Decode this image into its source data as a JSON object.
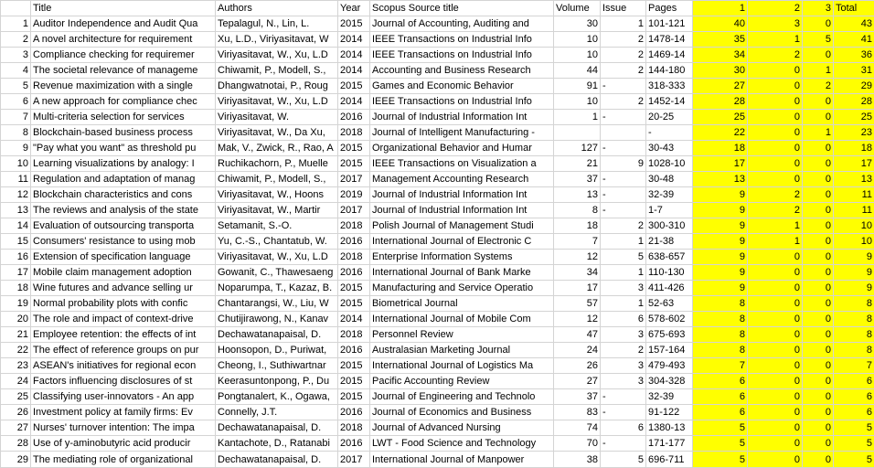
{
  "sheet": {
    "highlight_color": "#ffff00",
    "headers": [
      "",
      "Title",
      "Authors",
      "Year",
      "Scopus Source title",
      "Volume",
      "Issue",
      "Pages",
      "1",
      "2",
      "3",
      "Total"
    ],
    "rows": [
      [
        "1",
        "Auditor Independence and Audit Qua",
        "Tepalagul, N., Lin, L.",
        "2015",
        "Journal of Accounting, Auditing and",
        "30",
        "1",
        "101-121",
        "40",
        "3",
        "0",
        "43"
      ],
      [
        "2",
        "A novel architecture for requirement",
        "Xu, L.D., Viriyasitavat, W",
        "2014",
        "IEEE Transactions on Industrial Info",
        "10",
        "2",
        "1478-14",
        "35",
        "1",
        "5",
        "41"
      ],
      [
        "3",
        "Compliance checking for requiremer",
        "Viriyasitavat, W., Xu, L.D",
        "2014",
        "IEEE Transactions on Industrial Info",
        "10",
        "2",
        "1469-14",
        "34",
        "2",
        "0",
        "36"
      ],
      [
        "4",
        "The societal relevance of manageme",
        "Chiwamit, P., Modell, S.,",
        "2014",
        "Accounting and Business Research",
        "44",
        "2",
        "144-180",
        "30",
        "0",
        "1",
        "31"
      ],
      [
        "5",
        "Revenue maximization with a single",
        "Dhangwatnotai, P., Roug",
        "2015",
        "Games and Economic Behavior",
        "91",
        "-",
        "318-333",
        "27",
        "0",
        "2",
        "29"
      ],
      [
        "6",
        "A new approach for compliance chec",
        "Viriyasitavat, W., Xu, L.D",
        "2014",
        "IEEE Transactions on Industrial Info",
        "10",
        "2",
        "1452-14",
        "28",
        "0",
        "0",
        "28"
      ],
      [
        "7",
        "Multi-criteria selection for services",
        "Viriyasitavat, W.",
        "2016",
        "Journal of Industrial Information Int",
        "1",
        "-",
        "20-25",
        "25",
        "0",
        "0",
        "25"
      ],
      [
        "8",
        "Blockchain-based business process",
        "Viriyasitavat, W., Da Xu,",
        "2018",
        "Journal of Intelligent Manufacturing -",
        "",
        "",
        "-",
        "22",
        "0",
        "1",
        "23"
      ],
      [
        "9",
        "\"Pay what you want\" as threshold pu",
        "Mak, V., Zwick, R., Rao, A",
        "2015",
        "Organizational Behavior and Humar",
        "127",
        "-",
        "30-43",
        "18",
        "0",
        "0",
        "18"
      ],
      [
        "10",
        "Learning visualizations by analogy: I",
        "Ruchikachorn, P., Muelle",
        "2015",
        "IEEE Transactions on Visualization a",
        "21",
        "9",
        "1028-10",
        "17",
        "0",
        "0",
        "17"
      ],
      [
        "11",
        "Regulation and adaptation of manag",
        "Chiwamit, P., Modell, S.,",
        "2017",
        "Management Accounting Research",
        "37",
        "-",
        "30-48",
        "13",
        "0",
        "0",
        "13"
      ],
      [
        "12",
        "Blockchain characteristics and cons",
        "Viriyasitavat, W., Hoons",
        "2019",
        "Journal of Industrial Information Int",
        "13",
        "-",
        "32-39",
        "9",
        "2",
        "0",
        "11"
      ],
      [
        "13",
        "The reviews and analysis of the state",
        "Viriyasitavat, W., Martir",
        "2017",
        "Journal of Industrial Information Int",
        "8",
        "-",
        "1-7",
        "9",
        "2",
        "0",
        "11"
      ],
      [
        "14",
        "Evaluation of outsourcing transporta",
        "Setamanit, S.-O.",
        "2018",
        "Polish Journal of Management Studi",
        "18",
        "2",
        "300-310",
        "9",
        "1",
        "0",
        "10"
      ],
      [
        "15",
        "Consumers' resistance to using mob",
        "Yu, C.-S., Chantatub, W.",
        "2016",
        "International Journal of Electronic C",
        "7",
        "1",
        "21-38",
        "9",
        "1",
        "0",
        "10"
      ],
      [
        "16",
        "Extension of specification language",
        "Viriyasitavat, W., Xu, L.D",
        "2018",
        "Enterprise Information Systems",
        "12",
        "5",
        "638-657",
        "9",
        "0",
        "0",
        "9"
      ],
      [
        "17",
        "Mobile claim management adoption",
        "Gowanit, C., Thawesaeng",
        "2016",
        "International Journal of Bank Marke",
        "34",
        "1",
        "110-130",
        "9",
        "0",
        "0",
        "9"
      ],
      [
        "18",
        "Wine futures and advance selling ur",
        "Noparumpa, T., Kazaz, B.",
        "2015",
        "Manufacturing and Service Operatio",
        "17",
        "3",
        "411-426",
        "9",
        "0",
        "0",
        "9"
      ],
      [
        "19",
        "Normal probability plots with confic",
        "Chantarangsi, W., Liu, W",
        "2015",
        "Biometrical Journal",
        "57",
        "1",
        "52-63",
        "8",
        "0",
        "0",
        "8"
      ],
      [
        "20",
        "The role and impact of context-drive",
        "Chutijirawong, N., Kanav",
        "2014",
        "International Journal of Mobile Com",
        "12",
        "6",
        "578-602",
        "8",
        "0",
        "0",
        "8"
      ],
      [
        "21",
        "Employee retention: the effects of int",
        "Dechawatanapaisal, D.",
        "2018",
        "Personnel Review",
        "47",
        "3",
        "675-693",
        "8",
        "0",
        "0",
        "8"
      ],
      [
        "22",
        "The effect of reference groups on pur",
        "Hoonsopon, D., Puriwat,",
        "2016",
        "Australasian Marketing Journal",
        "24",
        "2",
        "157-164",
        "8",
        "0",
        "0",
        "8"
      ],
      [
        "23",
        "ASEAN's initiatives for regional econ",
        "Cheong, I., Suthiwartnar",
        "2015",
        "International Journal of Logistics Ma",
        "26",
        "3",
        "479-493",
        "7",
        "0",
        "0",
        "7"
      ],
      [
        "24",
        "Factors influencing disclosures of st",
        "Keerasuntonpong, P., Du",
        "2015",
        "Pacific Accounting Review",
        "27",
        "3",
        "304-328",
        "6",
        "0",
        "0",
        "6"
      ],
      [
        "25",
        "Classifying user-innovators - An app",
        "Pongtanalert, K., Ogawa,",
        "2015",
        "Journal of Engineering and Technolo",
        "37",
        "-",
        "32-39",
        "6",
        "0",
        "0",
        "6"
      ],
      [
        "26",
        "Investment policy at family firms: Ev",
        "Connelly, J.T.",
        "2016",
        "Journal of Economics and Business",
        "83",
        "-",
        "91-122",
        "6",
        "0",
        "0",
        "6"
      ],
      [
        "27",
        "Nurses' turnover intention: The impa",
        "Dechawatanapaisal, D.",
        "2018",
        "Journal of Advanced Nursing",
        "74",
        "6",
        "1380-13",
        "5",
        "0",
        "0",
        "5"
      ],
      [
        "28",
        "Use of y-aminobutyric acid producir",
        "Kantachote, D., Ratanabi",
        "2016",
        "LWT - Food Science and Technology",
        "70",
        "-",
        "171-177",
        "5",
        "0",
        "0",
        "5"
      ],
      [
        "29",
        "The mediating role of organizational",
        "Dechawatanapaisal, D.",
        "2017",
        "International Journal of Manpower",
        "38",
        "5",
        "696-711",
        "5",
        "0",
        "0",
        "5"
      ]
    ]
  }
}
